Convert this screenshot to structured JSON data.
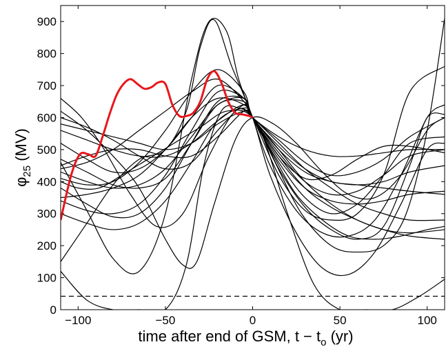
{
  "chart_data": {
    "type": "line",
    "xlabel": {
      "main": "time after end of GSM, t − t",
      "sub": "o",
      "unit": " (yr)"
    },
    "ylabel": {
      "symbol": "φ",
      "sub": "25",
      "unit": "  (MV)"
    },
    "xlim": [
      -110,
      110
    ],
    "ylim": [
      0,
      950
    ],
    "xticks": [
      -100,
      -50,
      0,
      50,
      100
    ],
    "yticks": [
      0,
      100,
      200,
      300,
      400,
      500,
      600,
      700,
      800,
      900
    ],
    "grid": false,
    "legend": "none",
    "reference_line": {
      "y": 42,
      "style": "dashed",
      "color": "#000000"
    },
    "highlight_color": "#e8161b",
    "series_color": "#000000",
    "series": [
      {
        "highlight": true,
        "x": [
          -110,
          -104,
          -99,
          -94,
          -90,
          -86,
          -82,
          -78,
          -74,
          -70,
          -66,
          -62,
          -58,
          -54,
          -50,
          -46,
          -42,
          -38,
          -34,
          -30,
          -26,
          -22,
          -18,
          -14,
          -10,
          -6,
          -2,
          0
        ],
        "y": [
          280,
          420,
          485,
          485,
          480,
          540,
          610,
          670,
          705,
          720,
          705,
          690,
          695,
          710,
          705,
          640,
          605,
          605,
          615,
          650,
          720,
          745,
          710,
          650,
          615,
          610,
          605,
          600
        ]
      },
      {
        "x": [
          -110,
          -95,
          -80,
          -65,
          -50,
          -38,
          -28,
          -18,
          -8,
          0,
          8,
          20,
          35,
          50,
          65,
          80,
          95,
          110
        ],
        "y": [
          120,
          30,
          0,
          0,
          0,
          140,
          450,
          620,
          630,
          600,
          510,
          300,
          80,
          0,
          0,
          0,
          40,
          95
        ]
      },
      {
        "x": [
          -110,
          -95,
          -80,
          -65,
          -50,
          -35,
          -25,
          -15,
          -8,
          0,
          10,
          25,
          40,
          55,
          70,
          85,
          100,
          110
        ],
        "y": [
          460,
          310,
          160,
          120,
          300,
          720,
          900,
          870,
          720,
          600,
          450,
          310,
          240,
          230,
          280,
          420,
          600,
          640
        ]
      },
      {
        "x": [
          -110,
          -95,
          -80,
          -65,
          -50,
          -38,
          -30,
          -22,
          -12,
          0,
          10,
          25,
          40,
          55,
          70,
          85,
          100,
          110
        ],
        "y": [
          150,
          270,
          390,
          470,
          500,
          620,
          820,
          905,
          760,
          600,
          420,
          240,
          130,
          110,
          180,
          330,
          500,
          520
        ]
      },
      {
        "x": [
          -110,
          -95,
          -80,
          -65,
          -50,
          -40,
          -32,
          -22,
          -10,
          0,
          12,
          25,
          40,
          55,
          70,
          85,
          100,
          110
        ],
        "y": [
          620,
          560,
          480,
          380,
          220,
          140,
          150,
          330,
          530,
          600,
          580,
          520,
          430,
          360,
          350,
          420,
          560,
          600
        ]
      },
      {
        "x": [
          -110,
          -100,
          -88,
          -75,
          -60,
          -45,
          -30,
          -15,
          0,
          15,
          30,
          45,
          60,
          75,
          90,
          100,
          110
        ],
        "y": [
          400,
          380,
          380,
          420,
          470,
          520,
          570,
          620,
          600,
          440,
          320,
          250,
          220,
          260,
          450,
          600,
          610
        ]
      },
      {
        "x": [
          -110,
          -95,
          -80,
          -65,
          -50,
          -35,
          -20,
          -5,
          0,
          15,
          30,
          45,
          60,
          75,
          90,
          110
        ],
        "y": [
          580,
          560,
          540,
          520,
          500,
          520,
          580,
          620,
          600,
          420,
          310,
          280,
          300,
          420,
          680,
          760
        ]
      },
      {
        "x": [
          -110,
          -98,
          -85,
          -70,
          -55,
          -40,
          -25,
          -10,
          0,
          12,
          28,
          45,
          60,
          75,
          88,
          100,
          110
        ],
        "y": [
          660,
          600,
          500,
          360,
          260,
          300,
          480,
          620,
          600,
          470,
          300,
          200,
          180,
          200,
          300,
          560,
          910
        ]
      },
      {
        "x": [
          -110,
          -95,
          -80,
          -65,
          -50,
          -35,
          -20,
          -5,
          0,
          15,
          30,
          45,
          60,
          75,
          90,
          110
        ],
        "y": [
          300,
          270,
          250,
          270,
          340,
          460,
          590,
          630,
          600,
          480,
          410,
          420,
          470,
          510,
          510,
          490
        ]
      },
      {
        "x": [
          -110,
          -95,
          -80,
          -65,
          -50,
          -35,
          -20,
          -5,
          0,
          15,
          30,
          45,
          60,
          75,
          90,
          110
        ],
        "y": [
          440,
          460,
          500,
          560,
          620,
          680,
          720,
          650,
          600,
          500,
          430,
          400,
          390,
          400,
          430,
          450
        ]
      },
      {
        "x": [
          -110,
          -95,
          -80,
          -65,
          -50,
          -35,
          -20,
          -5,
          0,
          15,
          30,
          45,
          60,
          75,
          90,
          110
        ],
        "y": [
          520,
          470,
          430,
          440,
          500,
          600,
          700,
          660,
          600,
          460,
          350,
          300,
          330,
          420,
          520,
          540
        ]
      },
      {
        "x": [
          -110,
          -95,
          -80,
          -65,
          -50,
          -35,
          -20,
          -5,
          0,
          15,
          30,
          45,
          60,
          75,
          90,
          110
        ],
        "y": [
          350,
          360,
          380,
          420,
          500,
          600,
          660,
          640,
          600,
          470,
          380,
          340,
          330,
          340,
          360,
          370
        ]
      },
      {
        "x": [
          -110,
          -95,
          -80,
          -65,
          -50,
          -35,
          -20,
          -5,
          0,
          15,
          30,
          45,
          60,
          75,
          90,
          110
        ],
        "y": [
          470,
          430,
          390,
          380,
          410,
          520,
          640,
          650,
          600,
          530,
          460,
          420,
          430,
          470,
          540,
          600
        ]
      },
      {
        "x": [
          -110,
          -95,
          -80,
          -65,
          -50,
          -35,
          -20,
          -5,
          0,
          15,
          30,
          45,
          60,
          75,
          90,
          110
        ],
        "y": [
          430,
          400,
          380,
          390,
          440,
          540,
          640,
          660,
          600,
          480,
          380,
          320,
          280,
          250,
          240,
          250
        ]
      },
      {
        "x": [
          -110,
          -95,
          -80,
          -65,
          -50,
          -35,
          -20,
          -5,
          0,
          15,
          30,
          45,
          60,
          75,
          90,
          110
        ],
        "y": [
          410,
          390,
          400,
          460,
          560,
          680,
          750,
          680,
          600,
          490,
          400,
          360,
          370,
          420,
          480,
          500
        ]
      },
      {
        "x": [
          -110,
          -95,
          -80,
          -65,
          -50,
          -35,
          -20,
          -5,
          0,
          15,
          30,
          45,
          60,
          75,
          90,
          110
        ],
        "y": [
          380,
          330,
          290,
          300,
          380,
          520,
          650,
          660,
          600,
          510,
          440,
          400,
          390,
          380,
          370,
          360
        ]
      },
      {
        "x": [
          -110,
          -95,
          -80,
          -65,
          -50,
          -35,
          -20,
          -5,
          0,
          15,
          30,
          45,
          60,
          75,
          90,
          110
        ],
        "y": [
          560,
          530,
          500,
          480,
          480,
          520,
          590,
          640,
          600,
          540,
          500,
          480,
          480,
          490,
          500,
          500
        ]
      },
      {
        "x": [
          -110,
          -95,
          -80,
          -65,
          -50,
          -35,
          -20,
          -5,
          0,
          12,
          25,
          40,
          55,
          70,
          85,
          100,
          110
        ],
        "y": [
          340,
          310,
          300,
          330,
          420,
          560,
          680,
          660,
          600,
          480,
          360,
          280,
          230,
          220,
          230,
          250,
          260
        ]
      },
      {
        "x": [
          -110,
          -95,
          -80,
          -65,
          -50,
          -35,
          -20,
          -5,
          0,
          15,
          30,
          45,
          60,
          75,
          90,
          110
        ],
        "y": [
          450,
          480,
          500,
          500,
          480,
          480,
          540,
          620,
          600,
          520,
          440,
          380,
          330,
          300,
          280,
          280
        ]
      },
      {
        "x": [
          -110,
          -95,
          -80,
          -65,
          -50,
          -35,
          -20,
          -5,
          0,
          15,
          30,
          45,
          60,
          75,
          90,
          110
        ],
        "y": [
          600,
          570,
          530,
          480,
          440,
          460,
          560,
          640,
          600,
          500,
          400,
          330,
          280,
          250,
          230,
          220
        ]
      }
    ]
  }
}
